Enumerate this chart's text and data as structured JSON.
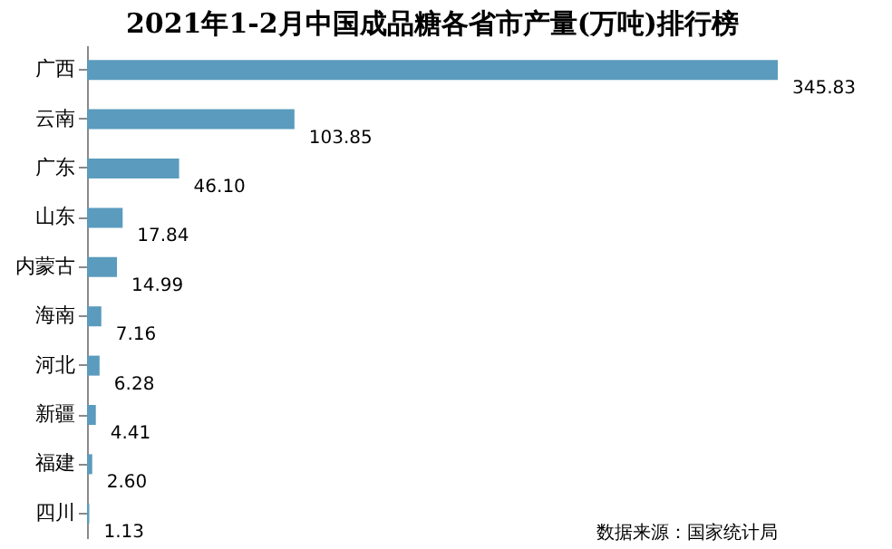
{
  "chart_data": {
    "type": "bar",
    "orientation": "horizontal",
    "title": "2021年1-2月中国成品糖各省市产量(万吨)排行榜",
    "categories": [
      "广西",
      "云南",
      "广东",
      "山东",
      "内蒙古",
      "海南",
      "河北",
      "新疆",
      "福建",
      "四川"
    ],
    "values": [
      345.83,
      103.85,
      46.1,
      17.84,
      14.99,
      7.16,
      6.28,
      4.41,
      2.6,
      1.13
    ],
    "value_labels": [
      "345.83",
      "103.85",
      "46.10",
      "17.84",
      "14.99",
      "7.16",
      "6.28",
      "4.41",
      "2.60",
      "1.13"
    ],
    "color": "#5b9bbd",
    "annotations": [
      "数据来源：国家统计局"
    ]
  }
}
